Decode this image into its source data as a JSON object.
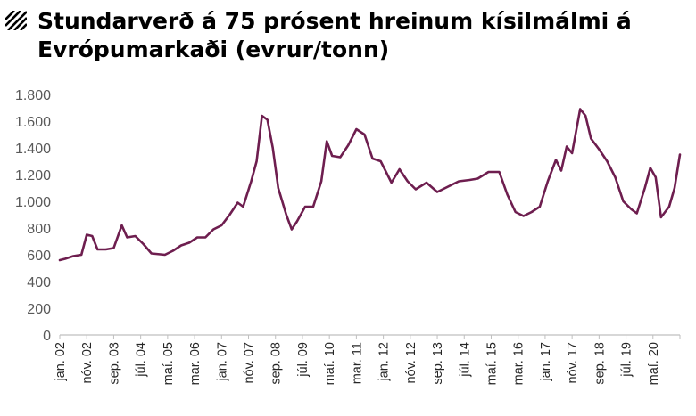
{
  "title": {
    "line1": "Stundarverð á 75 prósent hreinum kísilmálmi á",
    "line2": "Evrópumarkaði (evrur/tonn)"
  },
  "colors": {
    "line": "#6e1e4f",
    "axis": "#bfbfbf",
    "tick_text": "#595959"
  },
  "chart_data": {
    "type": "line",
    "title": "Stundarverð á 75 prósent hreinum kísilmálmi á Evrópumarkaði (evrur/tonn)",
    "xlabel": "",
    "ylabel": "",
    "ylim": [
      0,
      1800
    ],
    "yticks": [
      0,
      200,
      400,
      600,
      800,
      1000,
      1200,
      1400,
      1600,
      1800
    ],
    "ytick_labels": [
      "0",
      "200",
      "400",
      "600",
      "800",
      "1.000",
      "1.200",
      "1.400",
      "1.600",
      "1.800"
    ],
    "grid": false,
    "legend": "none",
    "x_start": "2002-01",
    "x_end": "2021-03",
    "x_tick_labels": [
      "jan. 02",
      "nóv. 02",
      "sep. 03",
      "júl. 04",
      "maí. 05",
      "mar. 06",
      "jan. 07",
      "nóv. 07",
      "sep. 08",
      "júl. 09",
      "maí. 10",
      "mar. 11",
      "jan. 12",
      "nóv. 12",
      "sep. 13",
      "júl. 14",
      "maí. 15",
      "mar. 16",
      "jan. 17",
      "nóv. 17",
      "sep. 18",
      "júl. 19",
      "maí. 20"
    ],
    "x_tick_dates": [
      "2002-01",
      "2002-11",
      "2003-09",
      "2004-07",
      "2005-05",
      "2006-03",
      "2007-01",
      "2007-11",
      "2008-09",
      "2009-07",
      "2010-05",
      "2011-03",
      "2012-01",
      "2012-11",
      "2013-09",
      "2014-07",
      "2015-05",
      "2016-03",
      "2017-01",
      "2017-11",
      "2018-09",
      "2019-07",
      "2020-05"
    ],
    "series": [
      {
        "points": [
          [
            "2002-01",
            560
          ],
          [
            "2002-03",
            570
          ],
          [
            "2002-06",
            590
          ],
          [
            "2002-09",
            600
          ],
          [
            "2002-11",
            750
          ],
          [
            "2003-01",
            740
          ],
          [
            "2003-03",
            640
          ],
          [
            "2003-06",
            640
          ],
          [
            "2003-09",
            650
          ],
          [
            "2003-12",
            820
          ],
          [
            "2004-02",
            730
          ],
          [
            "2004-05",
            740
          ],
          [
            "2004-08",
            680
          ],
          [
            "2004-11",
            610
          ],
          [
            "2005-04",
            600
          ],
          [
            "2005-07",
            630
          ],
          [
            "2005-10",
            670
          ],
          [
            "2006-01",
            690
          ],
          [
            "2006-04",
            730
          ],
          [
            "2006-07",
            730
          ],
          [
            "2006-10",
            790
          ],
          [
            "2007-01",
            820
          ],
          [
            "2007-04",
            900
          ],
          [
            "2007-07",
            990
          ],
          [
            "2007-09",
            960
          ],
          [
            "2007-12",
            1150
          ],
          [
            "2008-02",
            1300
          ],
          [
            "2008-04",
            1640
          ],
          [
            "2008-06",
            1610
          ],
          [
            "2008-08",
            1400
          ],
          [
            "2008-10",
            1100
          ],
          [
            "2009-01",
            900
          ],
          [
            "2009-03",
            790
          ],
          [
            "2009-05",
            850
          ],
          [
            "2009-08",
            960
          ],
          [
            "2009-11",
            960
          ],
          [
            "2010-02",
            1150
          ],
          [
            "2010-04",
            1450
          ],
          [
            "2010-06",
            1340
          ],
          [
            "2010-09",
            1330
          ],
          [
            "2010-12",
            1420
          ],
          [
            "2011-03",
            1540
          ],
          [
            "2011-06",
            1500
          ],
          [
            "2011-09",
            1320
          ],
          [
            "2011-12",
            1300
          ],
          [
            "2012-04",
            1140
          ],
          [
            "2012-07",
            1240
          ],
          [
            "2012-10",
            1150
          ],
          [
            "2013-01",
            1090
          ],
          [
            "2013-05",
            1140
          ],
          [
            "2013-09",
            1070
          ],
          [
            "2013-12",
            1100
          ],
          [
            "2014-05",
            1150
          ],
          [
            "2014-09",
            1160
          ],
          [
            "2014-12",
            1170
          ],
          [
            "2015-04",
            1220
          ],
          [
            "2015-08",
            1220
          ],
          [
            "2015-11",
            1050
          ],
          [
            "2016-02",
            920
          ],
          [
            "2016-05",
            890
          ],
          [
            "2016-08",
            920
          ],
          [
            "2016-11",
            960
          ],
          [
            "2017-02",
            1150
          ],
          [
            "2017-05",
            1310
          ],
          [
            "2017-07",
            1230
          ],
          [
            "2017-09",
            1410
          ],
          [
            "2017-11",
            1360
          ],
          [
            "2018-02",
            1690
          ],
          [
            "2018-04",
            1640
          ],
          [
            "2018-06",
            1470
          ],
          [
            "2018-09",
            1390
          ],
          [
            "2018-12",
            1300
          ],
          [
            "2019-03",
            1180
          ],
          [
            "2019-06",
            1000
          ],
          [
            "2019-09",
            940
          ],
          [
            "2019-11",
            910
          ],
          [
            "2020-02",
            1100
          ],
          [
            "2020-04",
            1250
          ],
          [
            "2020-06",
            1180
          ],
          [
            "2020-08",
            880
          ],
          [
            "2020-11",
            960
          ],
          [
            "2021-01",
            1100
          ],
          [
            "2021-03",
            1350
          ]
        ]
      }
    ]
  }
}
